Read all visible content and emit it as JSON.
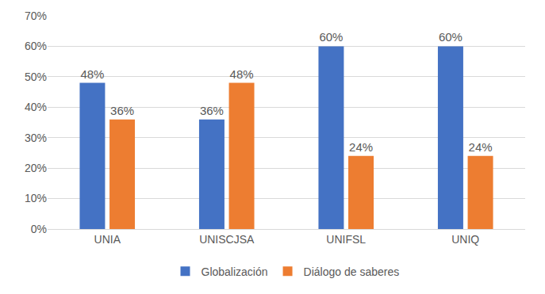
{
  "chart_data": {
    "type": "bar",
    "categories": [
      "UNIA",
      "UNISCJSA",
      "UNIFSL",
      "UNIQ"
    ],
    "series": [
      {
        "name": "Globalización",
        "color": "#4472c4",
        "values": [
          48,
          36,
          60,
          60
        ],
        "value_labels": [
          "48%",
          "36%",
          "60%",
          "60%"
        ]
      },
      {
        "name": "Diálogo de saberes",
        "color": "#ed7d31",
        "values": [
          36,
          48,
          24,
          24
        ],
        "value_labels": [
          "36%",
          "48%",
          "24%",
          "24%"
        ]
      }
    ],
    "ylim": [
      0,
      70
    ],
    "yticks": [
      {
        "value": 0,
        "label": "0%"
      },
      {
        "value": 10,
        "label": "10%"
      },
      {
        "value": 20,
        "label": "20%"
      },
      {
        "value": 30,
        "label": "30%"
      },
      {
        "value": 40,
        "label": "40%"
      },
      {
        "value": 50,
        "label": "50%"
      },
      {
        "value": 60,
        "label": "60%"
      },
      {
        "value": 70,
        "label": "70%"
      }
    ],
    "grid": true,
    "legend": "bottom",
    "data_labels": true
  }
}
